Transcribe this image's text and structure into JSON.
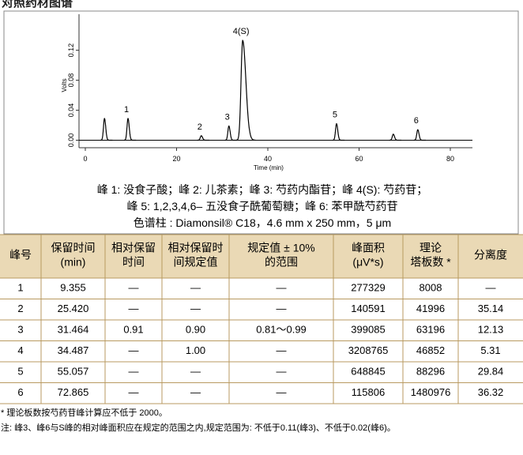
{
  "title": "对照药材图谱",
  "chromatogram": {
    "type": "line",
    "y_label": "Volts",
    "x_label": "Time (min)",
    "xlim": [
      0,
      85
    ],
    "ylim": [
      -0.01,
      0.168
    ],
    "xticks": [
      0,
      20,
      40,
      60,
      80
    ],
    "yticks": [
      {
        "value": 0,
        "label": "0.00"
      },
      {
        "value": 0.04,
        "label": "0.04"
      },
      {
        "value": 0.08,
        "label": "0.08"
      },
      {
        "value": 0.12,
        "label": "0.12"
      }
    ],
    "peaks": {
      "x": [
        4.2,
        9.355,
        25.42,
        31.464,
        34.487,
        55.057,
        67.5,
        72.865
      ],
      "heights": [
        0.029,
        0.029,
        0.006,
        0.019,
        0.133,
        0.022,
        0.008,
        0.014
      ],
      "labels": [
        null,
        "1",
        "2",
        "3",
        "4(S)",
        "5",
        null,
        "6"
      ]
    }
  },
  "caption": [
    "峰 1: 没食子酸；峰 2: 儿茶素；峰 3: 芍药内酯苷；峰 4(S): 芍药苷；",
    "峰 5: 1,2,3,4,6– 五没食子酰葡萄糖；峰 6: 苯甲酰芍药苷",
    "色谱柱 : Diamonsil® C18，4.6 mm x 250 mm，5 μm"
  ],
  "table": {
    "header": [
      [
        "峰号"
      ],
      [
        "保留时间",
        "(min)"
      ],
      [
        "相对保留",
        "时间"
      ],
      [
        "相对保留时",
        "间规定值"
      ],
      [
        "规定值 ± 10%",
        "的范围"
      ],
      [
        "峰面积",
        "(μV*s)"
      ],
      [
        "理论",
        "塔板数 *"
      ],
      [
        "分离度"
      ]
    ],
    "rows": [
      [
        "1",
        "9.355",
        "—",
        "—",
        "—",
        "277329",
        "8008",
        "—"
      ],
      [
        "2",
        "25.420",
        "—",
        "—",
        "—",
        "140591",
        "41996",
        "35.14"
      ],
      [
        "3",
        "31.464",
        "0.91",
        "0.90",
        "0.81～0.99",
        "399085",
        "63196",
        "12.13"
      ],
      [
        "4",
        "34.487",
        "—",
        "1.00",
        "—",
        "3208765",
        "46852",
        "5.31"
      ],
      [
        "5",
        "55.057",
        "—",
        "—",
        "—",
        "648845",
        "88296",
        "29.84"
      ],
      [
        "6",
        "72.865",
        "—",
        "—",
        "—",
        "115806",
        "1480976",
        "36.32"
      ]
    ]
  },
  "notes": [
    "* 理论板数按芍药苷峰计算应不低于 2000。",
    "注: 峰3、峰6与S峰的相对峰面积应在规定的范围之内,规定范围为: 不低于0.11(峰3)、不低于0.02(峰6)。"
  ]
}
